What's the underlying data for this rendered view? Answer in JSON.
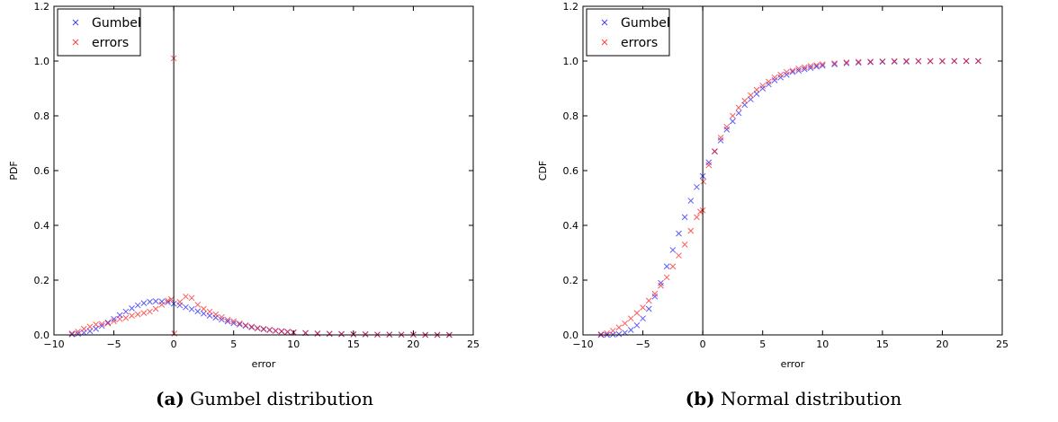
{
  "captions": [
    {
      "label": "(a)",
      "text": "Gumbel distribution"
    },
    {
      "label": "(b)",
      "text": "Normal distribution"
    }
  ],
  "chart_data": [
    {
      "type": "scatter",
      "title": "",
      "xlabel": "error",
      "ylabel": "PDF",
      "xlim": [
        -10,
        25
      ],
      "ylim": [
        0,
        1.2
      ],
      "xticks": [
        -10,
        -5,
        0,
        5,
        10,
        15,
        20,
        25
      ],
      "yticks": [
        0.0,
        0.2,
        0.4,
        0.6,
        0.8,
        1.0,
        1.2
      ],
      "xtick_labels": [
        "−10",
        "−5",
        "0",
        "5",
        "10",
        "15",
        "20",
        "25"
      ],
      "ytick_labels": [
        "0.0",
        "0.2",
        "0.4",
        "0.6",
        "0.8",
        "1.0",
        "1.2"
      ],
      "vertical_line_x": 0,
      "marker": "x",
      "legend": {
        "position": "top-left"
      },
      "series": [
        {
          "name": "Gumbel",
          "color": "#0000ff",
          "points": [
            [
              -8.5,
              0.002
            ],
            [
              -8,
              0.004
            ],
            [
              -7.5,
              0.008
            ],
            [
              -7,
              0.014
            ],
            [
              -6.5,
              0.022
            ],
            [
              -6,
              0.033
            ],
            [
              -5.5,
              0.045
            ],
            [
              -5,
              0.058
            ],
            [
              -4.5,
              0.072
            ],
            [
              -4,
              0.085
            ],
            [
              -3.5,
              0.097
            ],
            [
              -3,
              0.108
            ],
            [
              -2.5,
              0.116
            ],
            [
              -2,
              0.121
            ],
            [
              -1.5,
              0.123
            ],
            [
              -1,
              0.122
            ],
            [
              -0.5,
              0.119
            ],
            [
              0,
              0.114
            ],
            [
              0.5,
              0.108
            ],
            [
              1,
              0.101
            ],
            [
              1.5,
              0.094
            ],
            [
              2,
              0.086
            ],
            [
              2.5,
              0.078
            ],
            [
              3,
              0.07
            ],
            [
              3.5,
              0.063
            ],
            [
              4,
              0.056
            ],
            [
              4.5,
              0.049
            ],
            [
              5,
              0.043
            ],
            [
              5.5,
              0.038
            ],
            [
              6,
              0.033
            ],
            [
              6.5,
              0.028
            ],
            [
              7,
              0.024
            ],
            [
              7.5,
              0.021
            ],
            [
              8,
              0.018
            ],
            [
              8.5,
              0.015
            ],
            [
              9,
              0.013
            ],
            [
              9.5,
              0.011
            ],
            [
              10,
              0.009
            ],
            [
              11,
              0.007
            ],
            [
              12,
              0.005
            ],
            [
              13,
              0.004
            ],
            [
              14,
              0.003
            ],
            [
              15,
              0.002
            ],
            [
              16,
              0.002
            ],
            [
              17,
              0.001
            ],
            [
              18,
              0.001
            ],
            [
              19,
              0.001
            ],
            [
              20,
              0.001
            ],
            [
              21,
              0.0
            ],
            [
              22,
              0.0
            ],
            [
              23,
              0.0
            ]
          ]
        },
        {
          "name": "errors",
          "color": "#ff0000",
          "points": [
            [
              -8.5,
              0.005
            ],
            [
              -8,
              0.012
            ],
            [
              -7.5,
              0.022
            ],
            [
              -7,
              0.03
            ],
            [
              -6.5,
              0.038
            ],
            [
              -6,
              0.04
            ],
            [
              -5.5,
              0.042
            ],
            [
              -5,
              0.05
            ],
            [
              -4.5,
              0.058
            ],
            [
              -4,
              0.062
            ],
            [
              -3.5,
              0.07
            ],
            [
              -3,
              0.075
            ],
            [
              -2.5,
              0.08
            ],
            [
              -2,
              0.085
            ],
            [
              -1.5,
              0.095
            ],
            [
              -1,
              0.11
            ],
            [
              -0.5,
              0.125
            ],
            [
              -0.2,
              0.13
            ],
            [
              0,
              1.01
            ],
            [
              0.05,
              0.005
            ],
            [
              0.5,
              0.12
            ],
            [
              1,
              0.14
            ],
            [
              1.5,
              0.135
            ],
            [
              2,
              0.11
            ],
            [
              2.5,
              0.095
            ],
            [
              3,
              0.085
            ],
            [
              3.5,
              0.075
            ],
            [
              4,
              0.065
            ],
            [
              4.5,
              0.055
            ],
            [
              5,
              0.05
            ],
            [
              5.5,
              0.042
            ],
            [
              6,
              0.035
            ],
            [
              6.5,
              0.03
            ],
            [
              7,
              0.025
            ],
            [
              7.5,
              0.022
            ],
            [
              8,
              0.018
            ],
            [
              8.5,
              0.015
            ],
            [
              9,
              0.013
            ],
            [
              9.5,
              0.011
            ],
            [
              10,
              0.009
            ],
            [
              11,
              0.007
            ],
            [
              12,
              0.005
            ],
            [
              13,
              0.004
            ],
            [
              14,
              0.003
            ],
            [
              15,
              0.002
            ],
            [
              16,
              0.002
            ],
            [
              17,
              0.001
            ],
            [
              18,
              0.001
            ],
            [
              19,
              0.001
            ],
            [
              20,
              0.001
            ],
            [
              21,
              0.0
            ],
            [
              22,
              0.0
            ],
            [
              23,
              0.0
            ]
          ]
        }
      ]
    },
    {
      "type": "scatter",
      "title": "",
      "xlabel": "error",
      "ylabel": "CDF",
      "xlim": [
        -10,
        25
      ],
      "ylim": [
        0,
        1.2
      ],
      "xticks": [
        -10,
        -5,
        0,
        5,
        10,
        15,
        20,
        25
      ],
      "yticks": [
        0.0,
        0.2,
        0.4,
        0.6,
        0.8,
        1.0,
        1.2
      ],
      "xtick_labels": [
        "−10",
        "−5",
        "0",
        "5",
        "10",
        "15",
        "20",
        "25"
      ],
      "ytick_labels": [
        "0.0",
        "0.2",
        "0.4",
        "0.6",
        "0.8",
        "1.0",
        "1.2"
      ],
      "vertical_line_x": 0,
      "marker": "x",
      "legend": {
        "position": "top-left"
      },
      "series": [
        {
          "name": "Gumbel",
          "color": "#0000ff",
          "points": [
            [
              -8.5,
              0.0
            ],
            [
              -8,
              0.0
            ],
            [
              -7.5,
              0.001
            ],
            [
              -7,
              0.003
            ],
            [
              -6.5,
              0.008
            ],
            [
              -6,
              0.018
            ],
            [
              -5.5,
              0.035
            ],
            [
              -5,
              0.06
            ],
            [
              -4.5,
              0.095
            ],
            [
              -4,
              0.14
            ],
            [
              -3.5,
              0.19
            ],
            [
              -3,
              0.25
            ],
            [
              -2.5,
              0.31
            ],
            [
              -2,
              0.37
            ],
            [
              -1.5,
              0.43
            ],
            [
              -1,
              0.49
            ],
            [
              -0.5,
              0.54
            ],
            [
              0,
              0.58
            ],
            [
              0.5,
              0.63
            ],
            [
              1,
              0.67
            ],
            [
              1.5,
              0.71
            ],
            [
              2,
              0.75
            ],
            [
              2.5,
              0.78
            ],
            [
              3,
              0.81
            ],
            [
              3.5,
              0.84
            ],
            [
              4,
              0.86
            ],
            [
              4.5,
              0.88
            ],
            [
              5,
              0.9
            ],
            [
              5.5,
              0.915
            ],
            [
              6,
              0.93
            ],
            [
              6.5,
              0.94
            ],
            [
              7,
              0.95
            ],
            [
              7.5,
              0.96
            ],
            [
              8,
              0.965
            ],
            [
              8.5,
              0.97
            ],
            [
              9,
              0.975
            ],
            [
              9.5,
              0.98
            ],
            [
              10,
              0.983
            ],
            [
              11,
              0.988
            ],
            [
              12,
              0.992
            ],
            [
              13,
              0.994
            ],
            [
              14,
              0.996
            ],
            [
              15,
              0.997
            ],
            [
              16,
              0.998
            ],
            [
              17,
              0.998
            ],
            [
              18,
              0.999
            ],
            [
              19,
              0.999
            ],
            [
              20,
              0.999
            ],
            [
              21,
              1.0
            ],
            [
              22,
              1.0
            ],
            [
              23,
              1.0
            ]
          ]
        },
        {
          "name": "errors",
          "color": "#ff0000",
          "points": [
            [
              -8.5,
              0.002
            ],
            [
              -8,
              0.006
            ],
            [
              -7.5,
              0.015
            ],
            [
              -7,
              0.027
            ],
            [
              -6.5,
              0.042
            ],
            [
              -6,
              0.06
            ],
            [
              -5.5,
              0.08
            ],
            [
              -5,
              0.1
            ],
            [
              -4.5,
              0.125
            ],
            [
              -4,
              0.15
            ],
            [
              -3.5,
              0.18
            ],
            [
              -3,
              0.21
            ],
            [
              -2.5,
              0.25
            ],
            [
              -2,
              0.29
            ],
            [
              -1.5,
              0.33
            ],
            [
              -1,
              0.38
            ],
            [
              -0.5,
              0.43
            ],
            [
              -0.2,
              0.45
            ],
            [
              0,
              0.455
            ],
            [
              0.05,
              0.56
            ],
            [
              0.5,
              0.62
            ],
            [
              1,
              0.67
            ],
            [
              1.5,
              0.72
            ],
            [
              2,
              0.76
            ],
            [
              2.5,
              0.8
            ],
            [
              3,
              0.83
            ],
            [
              3.5,
              0.855
            ],
            [
              4,
              0.875
            ],
            [
              4.5,
              0.895
            ],
            [
              5,
              0.91
            ],
            [
              5.5,
              0.925
            ],
            [
              6,
              0.94
            ],
            [
              6.5,
              0.95
            ],
            [
              7,
              0.96
            ],
            [
              7.5,
              0.965
            ],
            [
              8,
              0.972
            ],
            [
              8.5,
              0.977
            ],
            [
              9,
              0.982
            ],
            [
              9.5,
              0.985
            ],
            [
              10,
              0.988
            ],
            [
              11,
              0.992
            ],
            [
              12,
              0.995
            ],
            [
              13,
              0.997
            ],
            [
              14,
              0.998
            ],
            [
              15,
              0.999
            ],
            [
              16,
              1.0
            ],
            [
              17,
              1.0
            ],
            [
              18,
              1.0
            ],
            [
              19,
              1.0
            ],
            [
              20,
              1.0
            ],
            [
              21,
              1.0
            ],
            [
              22,
              1.0
            ],
            [
              23,
              1.0
            ]
          ]
        }
      ]
    }
  ]
}
